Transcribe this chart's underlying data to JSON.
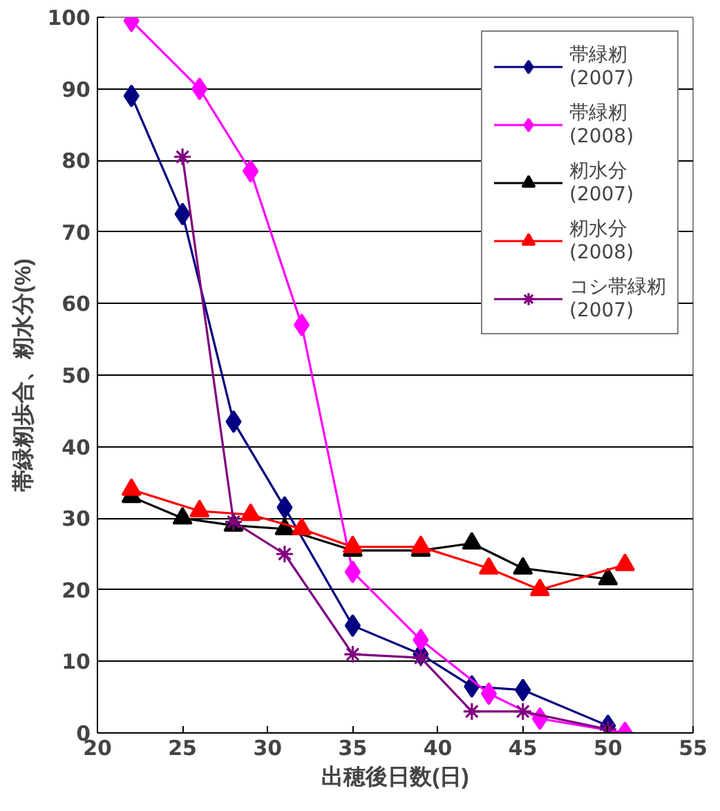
{
  "chart_data": {
    "type": "line",
    "xlabel": "出穂後日数(日)",
    "ylabel": "帯緑籾歩合、籾水分(%)",
    "xlim": [
      20,
      55
    ],
    "xticks": [
      20,
      25,
      30,
      35,
      40,
      45,
      50,
      55
    ],
    "ylim": [
      0,
      100
    ],
    "yticks": [
      0,
      10,
      20,
      30,
      40,
      50,
      60,
      70,
      80,
      90,
      100
    ],
    "grid": "y",
    "legend": "top right",
    "line_style": "solid",
    "series": [
      {
        "name": "帯緑籾\n(2007)",
        "color": "#000080",
        "marker": "diamond",
        "x": [
          22,
          25,
          28,
          31,
          35,
          39,
          42,
          45,
          50
        ],
        "values": [
          89,
          72.5,
          43.5,
          31.5,
          15,
          11,
          6.5,
          6,
          1
        ]
      },
      {
        "name": "帯緑籾\n(2008)",
        "color": "#ff00ff",
        "marker": "diamond",
        "x": [
          22,
          26,
          29,
          32,
          35,
          39,
          43,
          46,
          51
        ],
        "values": [
          99.5,
          90,
          78.5,
          57,
          22.5,
          13,
          5.5,
          2,
          0
        ]
      },
      {
        "name": "籾水分\n(2007)",
        "color": "#000000",
        "marker": "triangle",
        "x": [
          22,
          25,
          28,
          31,
          35,
          39,
          42,
          45,
          50
        ],
        "values": [
          33,
          30,
          29,
          28.5,
          25.5,
          25.5,
          26.5,
          23,
          21.5
        ]
      },
      {
        "name": "籾水分\n(2008)",
        "color": "#ff0000",
        "marker": "triangle",
        "x": [
          22,
          26,
          29,
          32,
          35,
          39,
          43,
          46,
          51
        ],
        "values": [
          34,
          31,
          30.5,
          28.5,
          26,
          26,
          23,
          20,
          23.5
        ]
      },
      {
        "name": "コシ帯緑籾\n(2007)",
        "color": "#800080",
        "marker": "cross",
        "x": [
          25,
          28,
          31,
          35,
          39,
          42,
          45,
          50
        ],
        "values": [
          80.5,
          29.5,
          25,
          11,
          10.5,
          3,
          3,
          0.5
        ]
      }
    ]
  }
}
